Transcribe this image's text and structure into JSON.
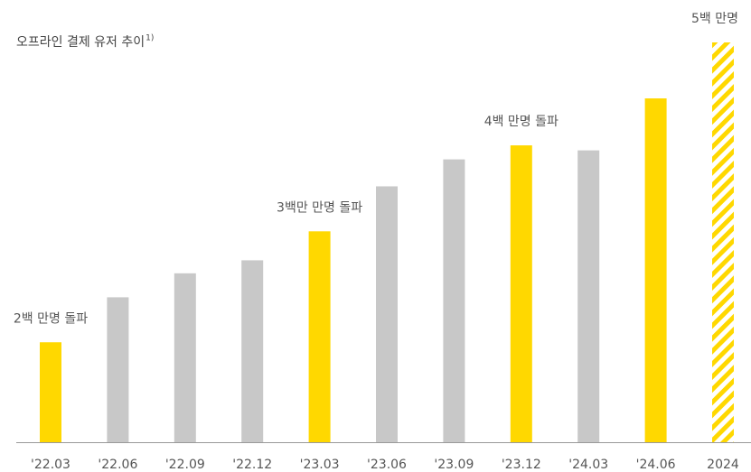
{
  "chart_data": {
    "type": "bar",
    "title": "오프라인 결제 유저 추이",
    "title_note": "1)",
    "categories": [
      "'22.03",
      "'22.06",
      "'22.09",
      "'22.12",
      "'23.03",
      "'23.06",
      "'23.09",
      "'23.12",
      "'24.03",
      "'24.06",
      "2024"
    ],
    "values": [
      2.0,
      2.45,
      2.69,
      2.82,
      3.11,
      3.56,
      3.83,
      3.97,
      3.92,
      4.44,
      5.0
    ],
    "colors": [
      "#ffd800",
      "#c8c8c8",
      "#c8c8c8",
      "#c8c8c8",
      "#ffd800",
      "#c8c8c8",
      "#c8c8c8",
      "#ffd800",
      "#c8c8c8",
      "#ffd800",
      "#ffd800"
    ],
    "hatched": [
      false,
      false,
      false,
      false,
      false,
      false,
      false,
      false,
      false,
      false,
      true
    ],
    "annotations": [
      {
        "text": "2백 만명 돌파",
        "category": 0
      },
      {
        "text": "3백만 만명 돌파",
        "category": 4
      },
      {
        "text": "4백 만명 돌파",
        "category": 7
      },
      {
        "text": "5백 만명",
        "category": 10
      }
    ],
    "ylim": [
      1,
      5
    ]
  }
}
